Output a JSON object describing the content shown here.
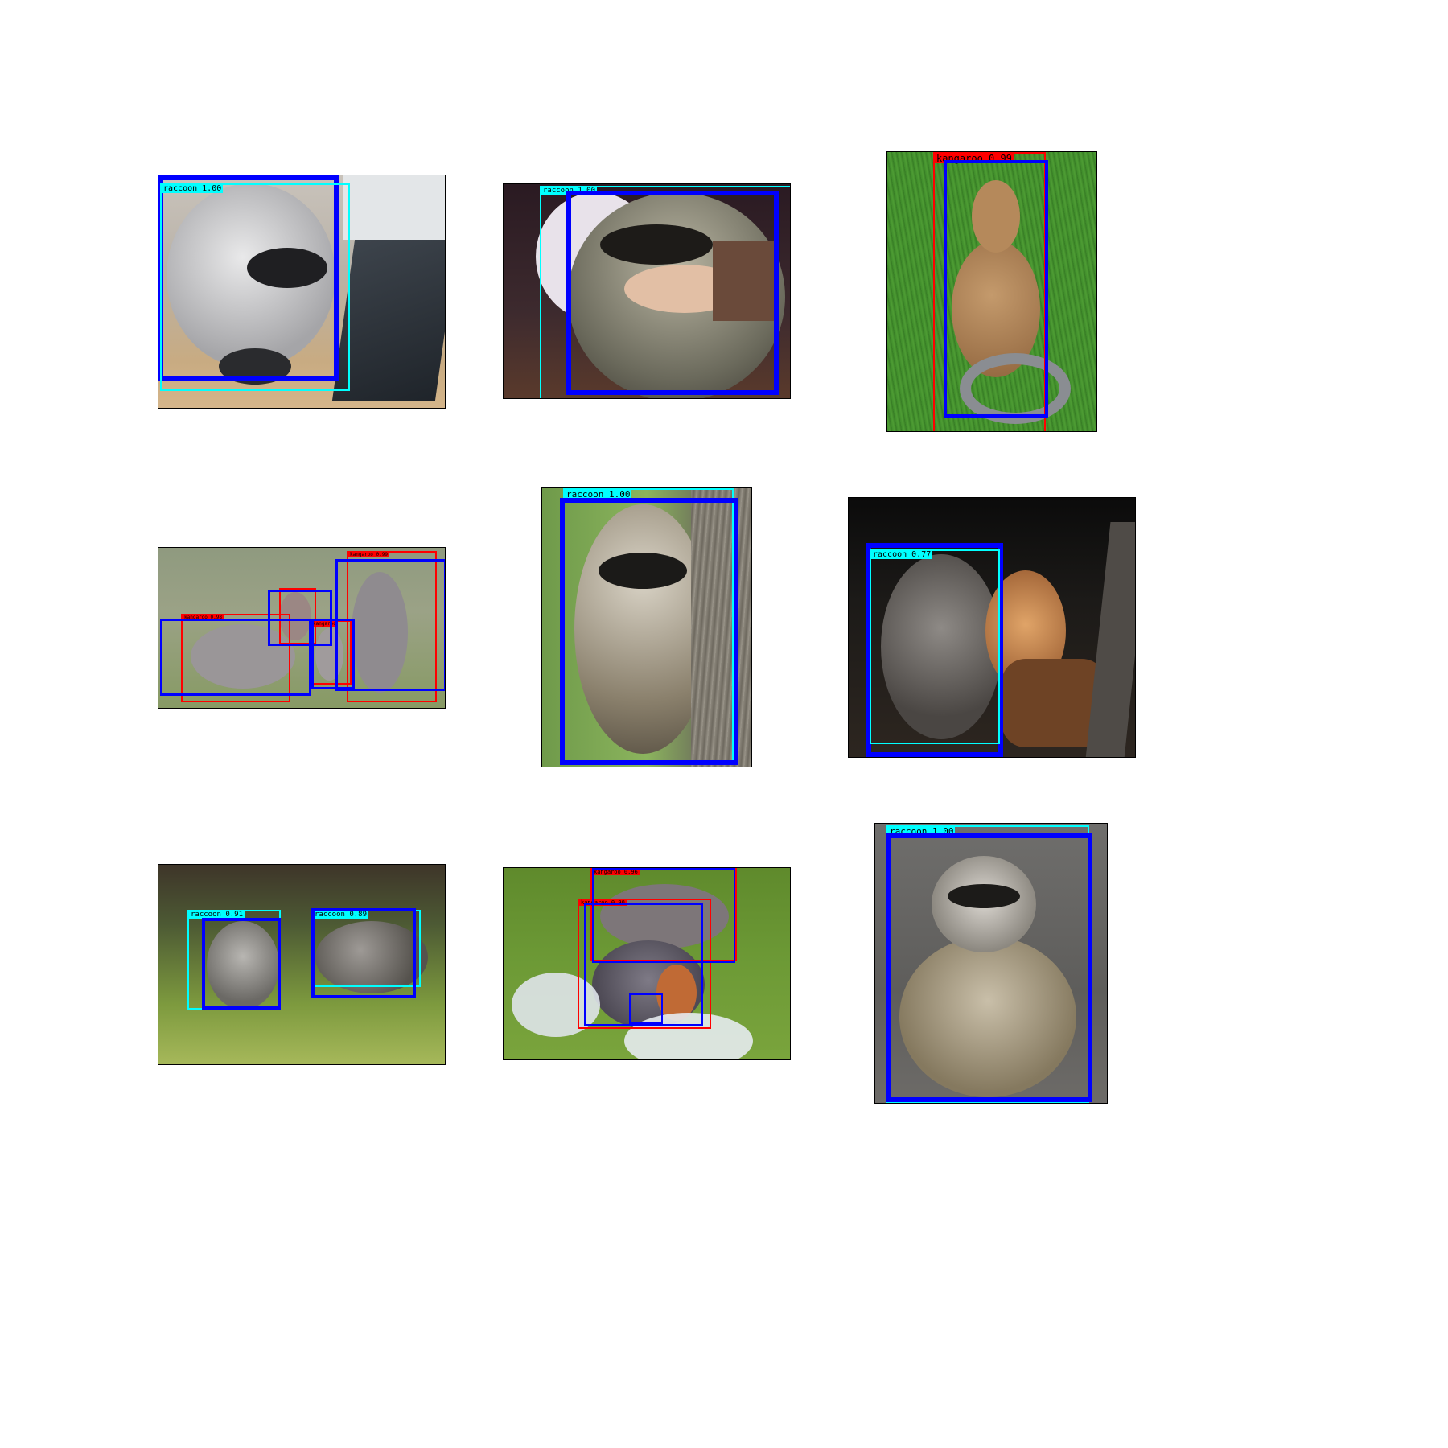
{
  "colors": {
    "ground_truth": "#0000ff",
    "raccoon_pred": "#00ffff",
    "kangaroo_pred": "#ff0000"
  },
  "panels": [
    {
      "id": "p1",
      "scene": "raccoon-at-keyboard",
      "labels": [
        "raccoon 1.00"
      ]
    },
    {
      "id": "p2",
      "scene": "raccoon-held-in-lap",
      "labels": [
        "raccoon 1.00"
      ]
    },
    {
      "id": "p3",
      "scene": "kangaroo-statue-on-grass",
      "labels": [
        "kangaroo 0.99"
      ]
    },
    {
      "id": "p4",
      "scene": "kangaroo-group-on-field",
      "labels": [
        "kangaroo 0.99",
        "kangaroo 0.98",
        "kangaroo"
      ]
    },
    {
      "id": "p5",
      "scene": "raccoon-on-tree-trunk",
      "labels": [
        "raccoon 1.00"
      ]
    },
    {
      "id": "p6",
      "scene": "raccoon-and-cat-at-night",
      "labels": [
        "raccoon 0.77"
      ]
    },
    {
      "id": "p7",
      "scene": "two-raccoons-in-grass",
      "labels": [
        "raccoon 0.91",
        "raccoon 0.89"
      ]
    },
    {
      "id": "p8",
      "scene": "wallabies-with-flowers",
      "labels": [
        "kangaroo 0.96",
        "kangaroo 0.90"
      ]
    },
    {
      "id": "p9",
      "scene": "raccoon-sitting-against-rock",
      "labels": [
        "raccoon 1.00"
      ]
    }
  ]
}
